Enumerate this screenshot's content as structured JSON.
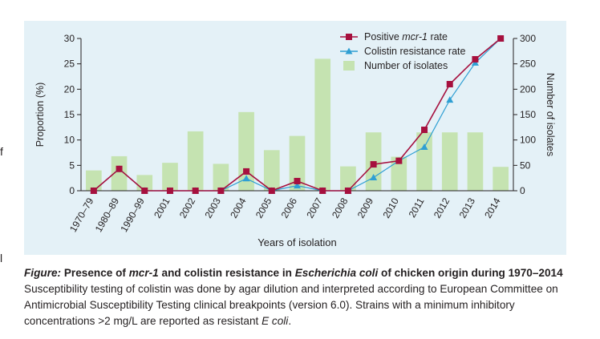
{
  "page_edge_marks": [
    "f",
    "l"
  ],
  "chart_data": {
    "type": "bar",
    "xlabel": "Years of isolation",
    "ylabel": "Proportion (%)",
    "y2label": "Number of isolates",
    "ylim": [
      0,
      30
    ],
    "y2lim": [
      0,
      300
    ],
    "yticks": [
      0,
      5,
      10,
      15,
      20,
      25,
      30
    ],
    "y2ticks": [
      0,
      50,
      100,
      150,
      200,
      250,
      300
    ],
    "categories": [
      "1970–79",
      "1980–89",
      "1990–99",
      "2001",
      "2002",
      "2003",
      "2004",
      "2005",
      "2006",
      "2007",
      "2008",
      "2009",
      "2010",
      "2011",
      "2012",
      "2013",
      "2014"
    ],
    "grid": false,
    "legend_position": "top-right",
    "series": [
      {
        "name": "Positive mcr-1 rate",
        "kind": "line",
        "axis": "left",
        "color": "#a6103e",
        "marker": "square",
        "values": [
          0,
          4.3,
          0,
          0,
          0,
          0,
          3.8,
          0,
          1.9,
          0,
          0,
          5.2,
          5.9,
          12.0,
          21.0,
          25.9,
          30.0
        ]
      },
      {
        "name": "Colistin resistance rate",
        "kind": "line",
        "axis": "left",
        "color": "#2f9fd3",
        "marker": "triangle",
        "values": [
          0,
          4.3,
          0,
          0,
          0,
          0,
          2.4,
          0,
          1.0,
          0,
          0,
          2.6,
          5.9,
          8.6,
          17.9,
          25.2,
          30.0
        ]
      },
      {
        "name": "Number of isolates",
        "kind": "bar",
        "axis": "right",
        "color": "#c5e3b1",
        "values": [
          40,
          68,
          31,
          55,
          117,
          53,
          155,
          80,
          108,
          260,
          48,
          115,
          67,
          115,
          115,
          115,
          47
        ]
      }
    ]
  },
  "caption": {
    "label": "Figure:",
    "title_1": " Presence of ",
    "title_gene": "mcr-1",
    "title_2": " and colistin resistance in ",
    "title_species": "Escherichia coli",
    "title_3": " of chicken origin during 1970–2014",
    "body_1": "Susceptibility testing of colistin was done by agar dilution and interpreted according to European Committee on Antimicrobial Susceptibility Testing clinical breakpoints (version 6.0). Strains with a minimum inhibitory concentrations >2 mg/L are reported as resistant ",
    "body_species": "E coli",
    "body_2": "."
  }
}
